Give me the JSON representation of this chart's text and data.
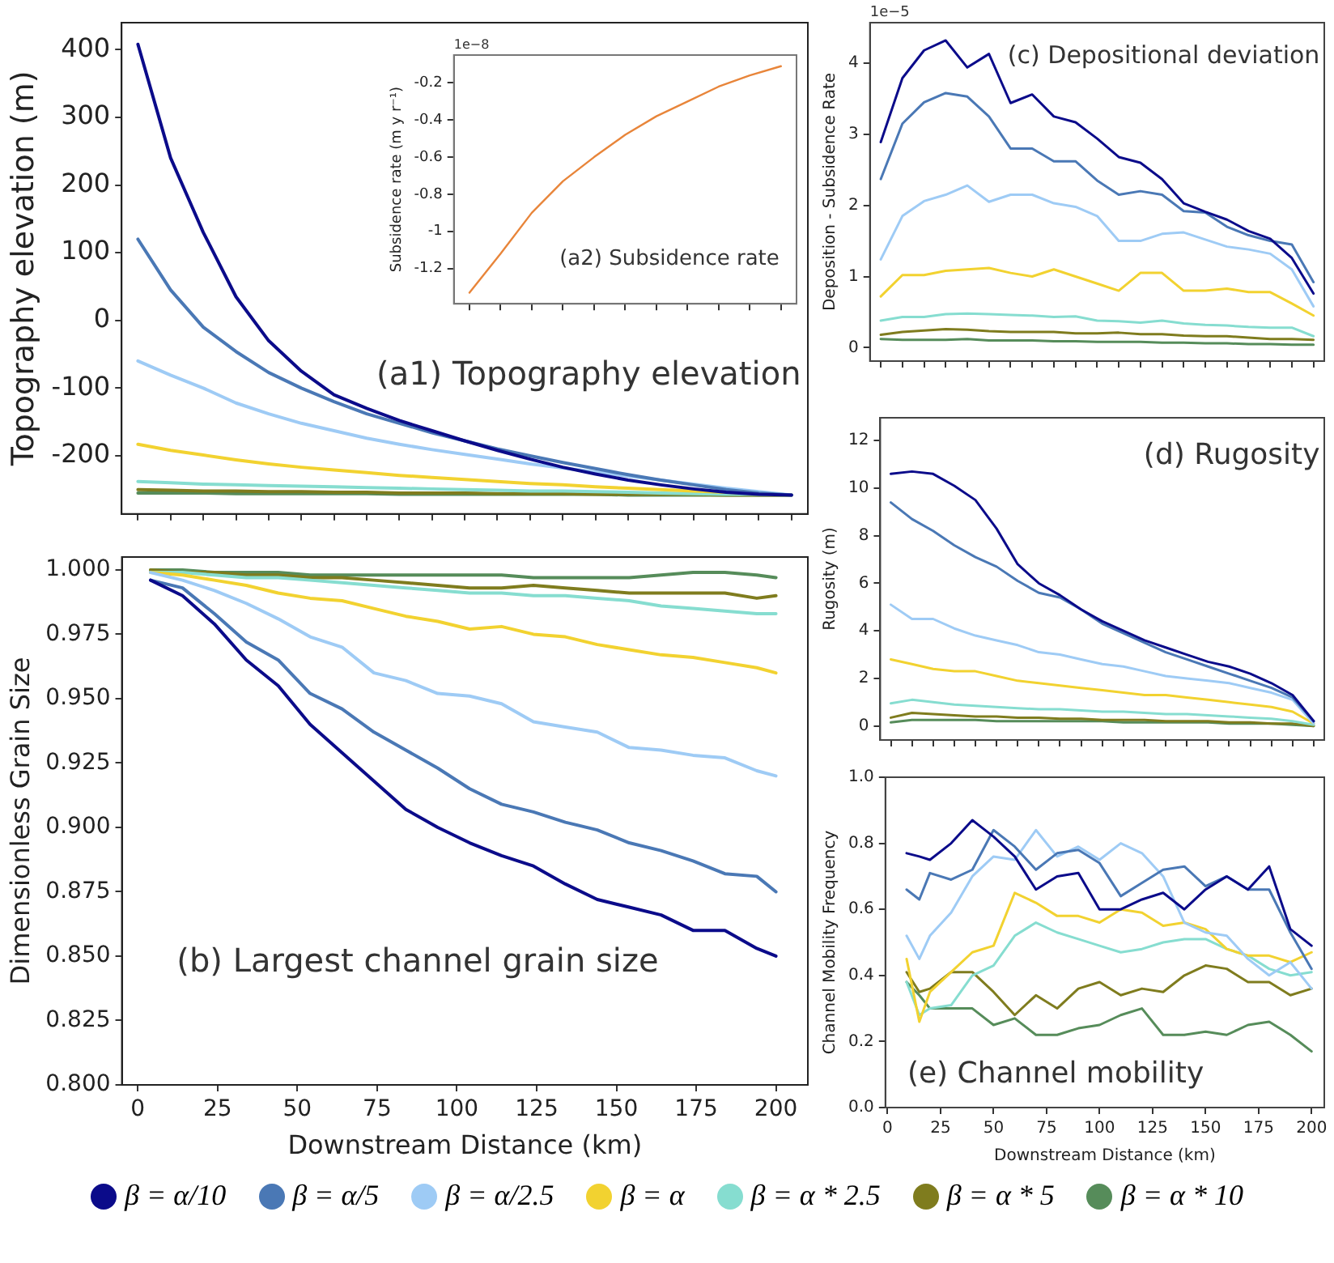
{
  "chart_data": [
    {
      "type": "line",
      "ylabel": "Topography elevation (m)",
      "annotations": [
        "(a1) Topography elevation"
      ],
      "categories": [
        null,
        null,
        null,
        null,
        null,
        null,
        null,
        null,
        null,
        null,
        null,
        null,
        null,
        null,
        null,
        null,
        null,
        null,
        null,
        null,
        null
      ],
      "ylim": [
        -286,
        440
      ],
      "yticks": [
        -200,
        -100,
        0,
        100,
        200,
        300,
        400
      ],
      "tick_labels": "y",
      "series": [
        {
          "color": "#0b0b8a",
          "values": [
            408,
            240,
            130,
            35,
            -30,
            -75,
            -110,
            -130,
            -148,
            -163,
            -178,
            -192,
            -205,
            -217,
            -227,
            -236,
            -243,
            -249,
            -254,
            -257,
            -258
          ]
        },
        {
          "color": "#4a78b5",
          "values": [
            120,
            45,
            -10,
            -46,
            -77,
            -100,
            -120,
            -138,
            -152,
            -166,
            -178,
            -190,
            -200,
            -210,
            -219,
            -228,
            -236,
            -243,
            -250,
            -255,
            -258
          ]
        },
        {
          "color": "#9ecbf5",
          "values": [
            -60,
            -81,
            -100,
            -122,
            -138,
            -152,
            -163,
            -174,
            -183,
            -191,
            -198,
            -205,
            -212,
            -218,
            -224,
            -230,
            -236,
            -242,
            -248,
            -253,
            -258
          ]
        },
        {
          "color": "#f2d230",
          "values": [
            -183,
            -192,
            -199,
            -206,
            -212,
            -217,
            -221,
            -225,
            -229,
            -232,
            -235,
            -238,
            -241,
            -243,
            -246,
            -248,
            -250,
            -252,
            -254,
            -256,
            -258
          ]
        },
        {
          "color": "#86ddd0",
          "values": [
            -238,
            -240,
            -242,
            -243,
            -244,
            -245,
            -246,
            -247,
            -248,
            -249,
            -250,
            -251,
            -252,
            -252,
            -253,
            -254,
            -255,
            -256,
            -257,
            -257,
            -258
          ]
        },
        {
          "color": "#7f7c1e",
          "values": [
            -250,
            -251,
            -252,
            -252,
            -253,
            -253,
            -254,
            -254,
            -255,
            -255,
            -255,
            -256,
            -256,
            -256,
            -257,
            -257,
            -257,
            -257,
            -258,
            -258,
            -258
          ]
        },
        {
          "color": "#568c5a",
          "values": [
            -255,
            -255,
            -255,
            -256,
            -256,
            -256,
            -256,
            -256,
            -257,
            -257,
            -257,
            -257,
            -257,
            -257,
            -257,
            -258,
            -258,
            -258,
            -258,
            -258,
            -258
          ]
        }
      ]
    },
    {
      "type": "line",
      "ylabel": "Subsidence rate (m y r⁻¹)",
      "annotations": [
        "(a2) Subsidence rate",
        "1e−8"
      ],
      "categories": [
        null,
        null,
        null,
        null,
        null,
        null,
        null,
        null,
        null,
        null,
        null
      ],
      "ylim": [
        -1.39,
        -0.05
      ],
      "yticks": [
        -1.2,
        -1.0,
        -0.8,
        -0.6,
        -0.4,
        -0.2
      ],
      "tick_labels": "y",
      "series": [
        {
          "color": "#e8853a",
          "values": [
            -1.33,
            -1.12,
            -0.9,
            -0.73,
            -0.6,
            -0.48,
            -0.38,
            -0.3,
            -0.22,
            -0.16,
            -0.11
          ]
        }
      ]
    },
    {
      "type": "line",
      "xlabel": "Downstream Distance (km)",
      "ylabel": "Dimensionless Grain Size",
      "annotations": [
        "(b) Largest channel grain size"
      ],
      "x": [
        4,
        14,
        24,
        34,
        44,
        54,
        64,
        74,
        84,
        94,
        104,
        114,
        124,
        134,
        144,
        154,
        164,
        174,
        184,
        194,
        200
      ],
      "xlim": [
        -5,
        210
      ],
      "xticks": [
        0,
        25,
        50,
        75,
        100,
        125,
        150,
        175,
        200
      ],
      "ylim": [
        0.8,
        1.005
      ],
      "yticks": [
        {
          "value": 0.8,
          "label": "0.800"
        },
        0.825,
        {
          "value": 0.85,
          "label": "0.850"
        },
        0.875,
        {
          "value": 0.9,
          "label": "0.900"
        },
        0.925,
        {
          "value": 0.95,
          "label": "0.950"
        },
        0.975,
        {
          "value": 1,
          "label": "1.000"
        }
      ],
      "legend": "bottom",
      "series": [
        {
          "name": "β = α/10",
          "color": "#0b0b8a",
          "values": [
            0.996,
            0.99,
            0.979,
            0.965,
            0.955,
            0.94,
            0.929,
            0.918,
            0.907,
            0.9,
            0.894,
            0.889,
            0.885,
            0.878,
            0.872,
            0.869,
            0.866,
            0.86,
            0.86,
            0.853,
            0.85
          ]
        },
        {
          "name": "β = α/5",
          "color": "#4a78b5",
          "values": [
            0.996,
            0.993,
            0.983,
            0.972,
            0.965,
            0.952,
            0.946,
            0.937,
            0.93,
            0.923,
            0.915,
            0.909,
            0.906,
            0.902,
            0.899,
            0.894,
            0.891,
            0.887,
            0.882,
            0.881,
            0.875
          ]
        },
        {
          "name": "β = α/2.5",
          "color": "#9ecbf5",
          "values": [
            0.999,
            0.996,
            0.992,
            0.987,
            0.981,
            0.974,
            0.97,
            0.96,
            0.957,
            0.952,
            0.951,
            0.948,
            0.941,
            0.939,
            0.937,
            0.931,
            0.93,
            0.928,
            0.927,
            0.922,
            0.92
          ]
        },
        {
          "name": "β = α",
          "color": "#f2d230",
          "values": [
            0.999,
            0.998,
            0.996,
            0.994,
            0.991,
            0.989,
            0.988,
            0.985,
            0.982,
            0.98,
            0.977,
            0.978,
            0.975,
            0.974,
            0.971,
            0.969,
            0.967,
            0.966,
            0.964,
            0.962,
            0.96
          ]
        },
        {
          "name": "β = α * 2.5",
          "color": "#86ddd0",
          "values": [
            0.999,
            0.999,
            0.998,
            0.997,
            0.997,
            0.996,
            0.995,
            0.994,
            0.993,
            0.992,
            0.991,
            0.991,
            0.99,
            0.99,
            0.989,
            0.988,
            0.986,
            0.985,
            0.984,
            0.983,
            0.983
          ]
        },
        {
          "name": "β = α * 5",
          "color": "#7f7c1e",
          "values": [
            1,
            0.999,
            0.999,
            0.998,
            0.998,
            0.997,
            0.997,
            0.996,
            0.995,
            0.994,
            0.993,
            0.993,
            0.994,
            0.993,
            0.992,
            0.991,
            0.991,
            0.991,
            0.991,
            0.989,
            0.99
          ]
        },
        {
          "name": "β = α * 10",
          "color": "#568c5a",
          "values": [
            1,
            1,
            0.999,
            0.999,
            0.999,
            0.998,
            0.998,
            0.998,
            0.998,
            0.998,
            0.998,
            0.998,
            0.997,
            0.997,
            0.997,
            0.997,
            0.998,
            0.999,
            0.999,
            0.998,
            0.997
          ]
        }
      ]
    },
    {
      "type": "line",
      "ylabel": "Deposition - Subsidence Rate",
      "annotations": [
        "(c) Depositional deviation",
        "1e−5"
      ],
      "categories": [
        null,
        null,
        null,
        null,
        null,
        null,
        null,
        null,
        null,
        null,
        null,
        null,
        null,
        null,
        null,
        null,
        null,
        null,
        null,
        null,
        null
      ],
      "ylim": [
        -0.19,
        4.57
      ],
      "yticks": [
        0,
        1,
        2,
        3,
        4
      ],
      "tick_labels": "y",
      "series": [
        {
          "color": "#0b0b8a",
          "values": [
            2.89,
            3.79,
            4.18,
            4.32,
            3.94,
            4.13,
            3.44,
            3.56,
            3.25,
            3.17,
            2.94,
            2.68,
            2.6,
            2.37,
            2.03,
            1.91,
            1.8,
            1.64,
            1.53,
            1.26,
            0.76
          ]
        },
        {
          "color": "#4a78b5",
          "values": [
            2.37,
            3.15,
            3.45,
            3.58,
            3.53,
            3.25,
            2.8,
            2.8,
            2.62,
            2.62,
            2.35,
            2.15,
            2.2,
            2.15,
            1.92,
            1.9,
            1.7,
            1.58,
            1.5,
            1.45,
            0.92
          ]
        },
        {
          "color": "#9ecbf5",
          "values": [
            1.24,
            1.85,
            2.06,
            2.15,
            2.28,
            2.05,
            2.15,
            2.15,
            2.03,
            1.98,
            1.85,
            1.5,
            1.5,
            1.6,
            1.62,
            1.52,
            1.42,
            1.38,
            1.32,
            1.1,
            0.58
          ]
        },
        {
          "color": "#f2d230",
          "values": [
            0.72,
            1.02,
            1.02,
            1.08,
            1.1,
            1.12,
            1.05,
            1,
            1.1,
            1,
            0.9,
            0.8,
            1.05,
            1.05,
            0.8,
            0.8,
            0.83,
            0.78,
            0.78,
            0.62,
            0.45
          ]
        },
        {
          "color": "#86ddd0",
          "values": [
            0.38,
            0.43,
            0.43,
            0.47,
            0.48,
            0.47,
            0.46,
            0.45,
            0.43,
            0.44,
            0.38,
            0.37,
            0.35,
            0.38,
            0.34,
            0.32,
            0.31,
            0.29,
            0.28,
            0.28,
            0.16
          ]
        },
        {
          "color": "#7f7c1e",
          "values": [
            0.18,
            0.22,
            0.24,
            0.26,
            0.25,
            0.23,
            0.22,
            0.22,
            0.22,
            0.2,
            0.2,
            0.21,
            0.19,
            0.19,
            0.17,
            0.16,
            0.16,
            0.14,
            0.12,
            0.12,
            0.11
          ]
        },
        {
          "color": "#568c5a",
          "values": [
            0.12,
            0.11,
            0.11,
            0.11,
            0.12,
            0.1,
            0.1,
            0.1,
            0.09,
            0.09,
            0.08,
            0.08,
            0.08,
            0.07,
            0.07,
            0.06,
            0.06,
            0.05,
            0.05,
            0.04,
            0.04
          ]
        }
      ]
    },
    {
      "type": "line",
      "ylabel": "Rugosity (m)",
      "annotations": [
        "(d) Rugosity"
      ],
      "categories": [
        null,
        null,
        null,
        null,
        null,
        null,
        null,
        null,
        null,
        null,
        null,
        null,
        null,
        null,
        null,
        null,
        null,
        null,
        null,
        null,
        null
      ],
      "ylim": [
        -0.59,
        12.96
      ],
      "yticks": [
        0,
        2,
        4,
        6,
        8,
        10,
        12
      ],
      "tick_labels": "y",
      "series": [
        {
          "color": "#0b0b8a",
          "values": [
            10.6,
            10.7,
            10.6,
            10.1,
            9.5,
            8.3,
            6.8,
            6,
            5.5,
            4.9,
            4.4,
            4,
            3.6,
            3.3,
            3,
            2.7,
            2.5,
            2.2,
            1.8,
            1.3,
            0.2
          ]
        },
        {
          "color": "#4a78b5",
          "values": [
            9.4,
            8.7,
            8.2,
            7.6,
            7.1,
            6.7,
            6.1,
            5.6,
            5.4,
            4.9,
            4.3,
            3.9,
            3.5,
            3.1,
            2.8,
            2.5,
            2.2,
            1.9,
            1.6,
            1.2,
            0.2
          ]
        },
        {
          "color": "#9ecbf5",
          "values": [
            5.1,
            4.5,
            4.5,
            4.1,
            3.8,
            3.6,
            3.4,
            3.1,
            3,
            2.8,
            2.6,
            2.5,
            2.3,
            2.1,
            2,
            1.9,
            1.8,
            1.6,
            1.4,
            1.1,
            0.1
          ]
        },
        {
          "color": "#f2d230",
          "values": [
            2.8,
            2.6,
            2.4,
            2.3,
            2.3,
            2.1,
            1.9,
            1.8,
            1.7,
            1.6,
            1.5,
            1.4,
            1.3,
            1.3,
            1.2,
            1.1,
            1,
            0.9,
            0.8,
            0.6,
            0.1
          ]
        },
        {
          "color": "#86ddd0",
          "values": [
            0.95,
            1.1,
            1,
            0.9,
            0.85,
            0.8,
            0.75,
            0.7,
            0.7,
            0.65,
            0.6,
            0.6,
            0.55,
            0.5,
            0.5,
            0.45,
            0.4,
            0.35,
            0.3,
            0.2,
            0.05
          ]
        },
        {
          "color": "#7f7c1e",
          "values": [
            0.35,
            0.55,
            0.5,
            0.45,
            0.4,
            0.4,
            0.35,
            0.35,
            0.3,
            0.3,
            0.25,
            0.25,
            0.25,
            0.2,
            0.2,
            0.2,
            0.15,
            0.15,
            0.1,
            0.1,
            0
          ]
        },
        {
          "color": "#568c5a",
          "values": [
            0.15,
            0.25,
            0.25,
            0.25,
            0.25,
            0.2,
            0.2,
            0.2,
            0.2,
            0.2,
            0.2,
            0.15,
            0.15,
            0.15,
            0.15,
            0.15,
            0.1,
            0.1,
            0.1,
            0.05,
            0
          ]
        }
      ]
    },
    {
      "type": "line",
      "xlabel": "Downstream Distance (km)",
      "ylabel": "Channel Mobility Frequency",
      "annotations": [
        "(e) Channel mobility"
      ],
      "x": [
        9,
        15,
        20,
        30,
        40,
        50,
        60,
        70,
        80,
        90,
        100,
        110,
        120,
        130,
        140,
        150,
        160,
        170,
        180,
        190,
        200
      ],
      "xlim": [
        -1,
        206
      ],
      "xticks": [
        0,
        25,
        50,
        75,
        100,
        125,
        150,
        175,
        200
      ],
      "ylim": [
        0,
        1
      ],
      "yticks": [
        {
          "value": 0,
          "label": "0.0"
        },
        0.2,
        0.4,
        0.6,
        0.8,
        {
          "value": 1,
          "label": "1.0"
        }
      ],
      "series": [
        {
          "color": "#0b0b8a",
          "values": [
            0.77,
            0.76,
            0.75,
            0.8,
            0.87,
            0.82,
            0.76,
            0.66,
            0.7,
            0.71,
            0.6,
            0.6,
            0.63,
            0.65,
            0.6,
            0.66,
            0.7,
            0.66,
            0.73,
            0.54,
            0.49
          ]
        },
        {
          "color": "#4a78b5",
          "values": [
            0.66,
            0.63,
            0.71,
            0.69,
            0.72,
            0.84,
            0.79,
            0.72,
            0.77,
            0.78,
            0.74,
            0.64,
            0.68,
            0.72,
            0.73,
            0.67,
            0.7,
            0.66,
            0.66,
            0.53,
            0.42
          ]
        },
        {
          "color": "#9ecbf5",
          "values": [
            0.52,
            0.45,
            0.52,
            0.59,
            0.7,
            0.76,
            0.75,
            0.84,
            0.76,
            0.79,
            0.75,
            0.8,
            0.77,
            0.7,
            0.56,
            0.53,
            0.52,
            0.45,
            0.4,
            0.44,
            0.36
          ]
        },
        {
          "color": "#f2d230",
          "values": [
            0.45,
            0.26,
            0.35,
            0.41,
            0.47,
            0.49,
            0.65,
            0.62,
            0.58,
            0.58,
            0.56,
            0.6,
            0.59,
            0.55,
            0.56,
            0.54,
            0.48,
            0.46,
            0.46,
            0.44,
            0.47
          ]
        },
        {
          "color": "#86ddd0",
          "values": [
            0.38,
            0.28,
            0.3,
            0.31,
            0.4,
            0.43,
            0.52,
            0.56,
            0.53,
            0.51,
            0.49,
            0.47,
            0.48,
            0.5,
            0.51,
            0.51,
            0.48,
            0.46,
            0.42,
            0.4,
            0.41
          ]
        },
        {
          "color": "#7f7c1e",
          "values": [
            0.41,
            0.35,
            0.36,
            0.41,
            0.41,
            0.35,
            0.28,
            0.34,
            0.3,
            0.36,
            0.38,
            0.34,
            0.36,
            0.35,
            0.4,
            0.43,
            0.42,
            0.38,
            0.38,
            0.34,
            0.36
          ]
        },
        {
          "color": "#568c5a",
          "values": [
            0.38,
            0.34,
            0.3,
            0.3,
            0.3,
            0.25,
            0.27,
            0.22,
            0.22,
            0.24,
            0.25,
            0.28,
            0.3,
            0.22,
            0.22,
            0.23,
            0.22,
            0.25,
            0.26,
            0.22,
            0.17
          ]
        }
      ]
    }
  ]
}
